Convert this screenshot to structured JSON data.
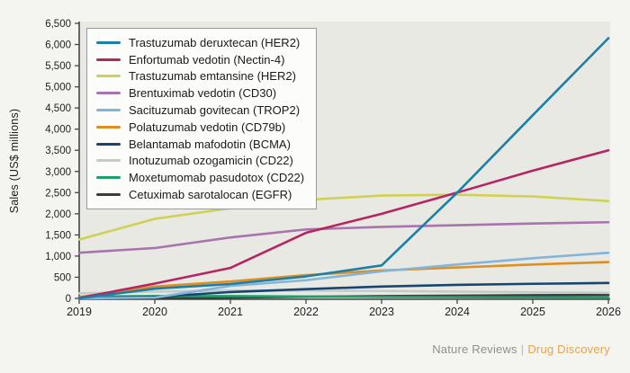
{
  "figure": {
    "background": "#f4f4f1",
    "footer": {
      "journal": "Nature Reviews",
      "separator": "|",
      "publication": "Drug Discovery",
      "journal_color": "#8f8f8f",
      "publication_color": "#e3a44f"
    }
  },
  "chart_data": {
    "type": "line",
    "title": "",
    "xlabel": "",
    "ylabel": "Sales (US$ millions)",
    "x": [
      "2019",
      "2020",
      "2021",
      "2022",
      "2023",
      "2024",
      "2025",
      "2026"
    ],
    "y_ticks": [
      0,
      500,
      1000,
      1500,
      2000,
      2500,
      3000,
      3500,
      4000,
      4500,
      5000,
      5500,
      6000,
      6500
    ],
    "ylim": [
      0,
      6500
    ],
    "grid": false,
    "legend_position": "top-left",
    "plot_background": "#e9e9e4",
    "axis_color": "#454545",
    "tick_label_color": "#1f1f1f",
    "series": [
      {
        "name": "Trastuzumab deruxtecan (HER2)",
        "color": "#1b7fa8",
        "values": [
          0,
          230,
          340,
          520,
          780,
          2500,
          4330,
          6150
        ]
      },
      {
        "name": "Enfortumab vedotin (Nectin-4)",
        "color": "#b62562",
        "values": [
          10,
          350,
          720,
          1550,
          2000,
          2500,
          3020,
          3500
        ]
      },
      {
        "name": "Trastuzumab emtansine (HER2)",
        "color": "#cfd152",
        "values": [
          1390,
          1880,
          2130,
          2330,
          2430,
          2450,
          2410,
          2300
        ]
      },
      {
        "name": "Brentuximab vedotin (CD30)",
        "color": "#a873ae",
        "values": [
          1080,
          1190,
          1440,
          1630,
          1690,
          1730,
          1770,
          1800
        ]
      },
      {
        "name": "Sacituzumab govitecan (TROP2)",
        "color": "#82b5d8",
        "values": [
          0,
          20,
          295,
          430,
          640,
          800,
          950,
          1080
        ]
      },
      {
        "name": "Polatuzumab vedotin (CD79b)",
        "color": "#df8e22",
        "values": [
          30,
          280,
          400,
          550,
          660,
          730,
          800,
          860
        ]
      },
      {
        "name": "Belantamab mafodotin (BCMA)",
        "color": "#1a4470",
        "values": [
          0,
          35,
          150,
          220,
          280,
          320,
          345,
          365
        ]
      },
      {
        "name": "Inotuzumab ozogamicin (CD22)",
        "color": "#c2cccc",
        "values": [
          120,
          160,
          185,
          185,
          175,
          160,
          145,
          130
        ]
      },
      {
        "name": "Moxetumomab pasudotox (CD22)",
        "color": "#1f9e6a",
        "values": [
          40,
          55,
          55,
          45,
          35,
          30,
          25,
          20
        ]
      },
      {
        "name": "Cetuximab sarotalocan (EGFR)",
        "color": "#3c3c3c",
        "values": [
          0,
          5,
          20,
          40,
          55,
          65,
          75,
          80
        ]
      }
    ]
  }
}
